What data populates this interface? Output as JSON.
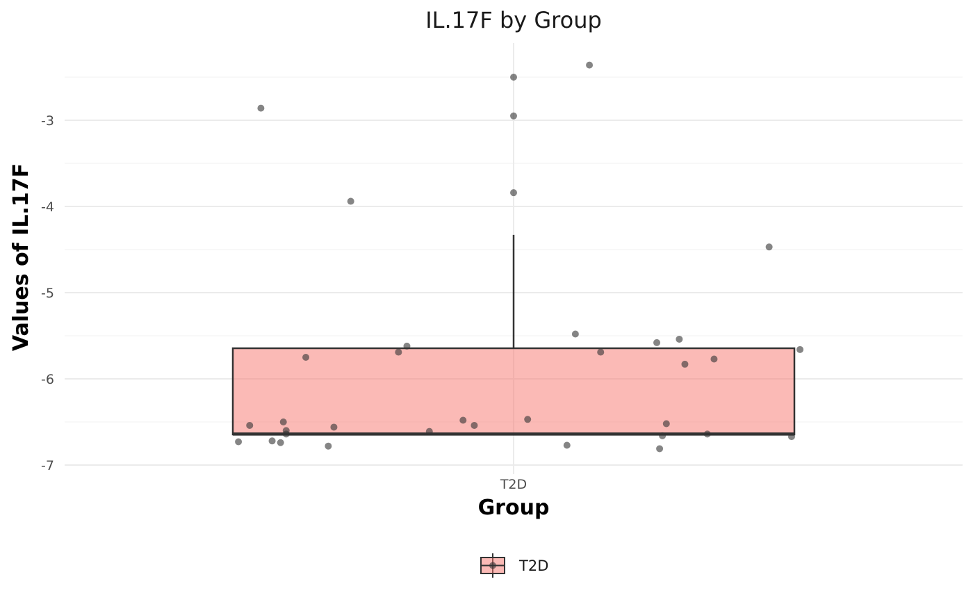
{
  "chart_data": {
    "type": "box",
    "title": "IL.17F by Group",
    "xlabel": "Group",
    "ylabel": "Values of IL.17F",
    "categories": [
      "T2D"
    ],
    "ylim": [
      -7.0,
      -2.3
    ],
    "yticks": [
      -7,
      -6,
      -5,
      -4,
      -3
    ],
    "ytick_labels": [
      "-7",
      "-6",
      "-5",
      "-4",
      "-3"
    ],
    "grid": true,
    "legend": {
      "position": "bottom",
      "title": "",
      "entries": [
        "T2D"
      ]
    },
    "colors": {
      "box_fill": "#F8766D",
      "box_stroke": "#333333",
      "point": "#333333"
    },
    "box": {
      "category": "T2D",
      "q1": -6.645,
      "median": -6.64,
      "q3": -5.645,
      "whisker_low": -6.645,
      "whisker_high": -4.33
    },
    "points": [
      {
        "x": -0.49,
        "y": -6.73
      },
      {
        "x": -0.47,
        "y": -6.54
      },
      {
        "x": -0.45,
        "y": -2.86
      },
      {
        "x": -0.43,
        "y": -6.72
      },
      {
        "x": -0.415,
        "y": -6.74
      },
      {
        "x": -0.41,
        "y": -6.5
      },
      {
        "x": -0.405,
        "y": -6.6
      },
      {
        "x": -0.405,
        "y": -6.64
      },
      {
        "x": -0.37,
        "y": -5.75
      },
      {
        "x": -0.33,
        "y": -6.78
      },
      {
        "x": -0.32,
        "y": -6.56
      },
      {
        "x": -0.29,
        "y": -3.94
      },
      {
        "x": -0.205,
        "y": -5.69
      },
      {
        "x": -0.19,
        "y": -5.62
      },
      {
        "x": -0.15,
        "y": -6.61
      },
      {
        "x": -0.09,
        "y": -6.48
      },
      {
        "x": -0.07,
        "y": -6.54
      },
      {
        "x": 0.0,
        "y": -2.5
      },
      {
        "x": 0.0,
        "y": -2.95
      },
      {
        "x": 0.0,
        "y": -3.84
      },
      {
        "x": 0.025,
        "y": -6.47
      },
      {
        "x": 0.095,
        "y": -6.77
      },
      {
        "x": 0.11,
        "y": -5.48
      },
      {
        "x": 0.135,
        "y": -2.36
      },
      {
        "x": 0.155,
        "y": -5.69
      },
      {
        "x": 0.255,
        "y": -5.58
      },
      {
        "x": 0.26,
        "y": -6.81
      },
      {
        "x": 0.265,
        "y": -6.66
      },
      {
        "x": 0.272,
        "y": -6.52
      },
      {
        "x": 0.295,
        "y": -5.54
      },
      {
        "x": 0.305,
        "y": -5.83
      },
      {
        "x": 0.345,
        "y": -6.64
      },
      {
        "x": 0.357,
        "y": -5.77
      },
      {
        "x": 0.455,
        "y": -4.47
      },
      {
        "x": 0.495,
        "y": -6.67
      },
      {
        "x": 0.51,
        "y": -5.66
      }
    ]
  }
}
